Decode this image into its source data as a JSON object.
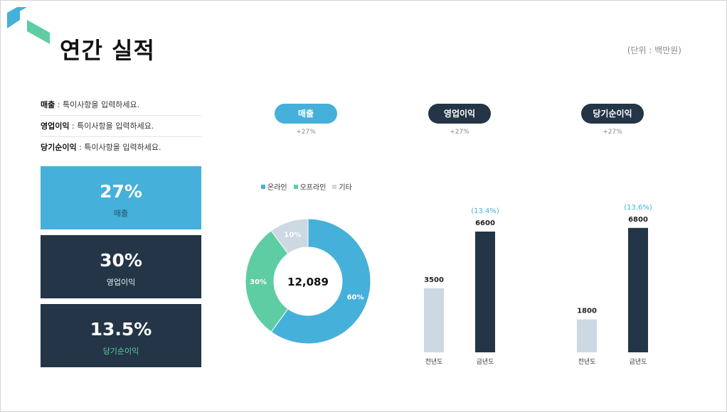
{
  "header": {
    "title": "연간 실적",
    "unit": "(단위 : 백만원)"
  },
  "notes": [
    {
      "label": "매출",
      "text": " : 특이사항을 입력하세요."
    },
    {
      "label": "영업이익",
      "text": " : 특이사항을 입력하세요."
    },
    {
      "label": "당기순이익",
      "text": " : 특이사항을 입력하세요."
    }
  ],
  "kpis": [
    {
      "value": "27%",
      "label": "매출"
    },
    {
      "value": "30%",
      "label": "영업이익"
    },
    {
      "value": "13.5%",
      "label": "당기순이익"
    }
  ],
  "tabs": [
    {
      "label": "매출",
      "sub": "+27%"
    },
    {
      "label": "영업이익",
      "sub": "+27%"
    },
    {
      "label": "당기순이익",
      "sub": "+27%"
    }
  ],
  "colors": {
    "blue": "#45b0da",
    "dark": "#233546",
    "green": "#5ecda3",
    "grey": "#ccd8e2"
  },
  "chart_data": [
    {
      "type": "pie",
      "center_label": "12,089",
      "legend": [
        "온라인",
        "오프라인",
        "기타"
      ],
      "slices": [
        {
          "name": "온라인",
          "value": 60,
          "label": "60%"
        },
        {
          "name": "오프라인",
          "value": 30,
          "label": "30%"
        },
        {
          "name": "기타",
          "value": 10,
          "label": "10%"
        }
      ]
    },
    {
      "type": "bar",
      "categories": [
        "전년도",
        "금년도"
      ],
      "values": [
        3500,
        6600
      ],
      "growth_label": "(13.4%)"
    },
    {
      "type": "bar",
      "categories": [
        "전년도",
        "금년도"
      ],
      "values": [
        1800,
        6800
      ],
      "growth_label": "(13.6%)"
    }
  ]
}
